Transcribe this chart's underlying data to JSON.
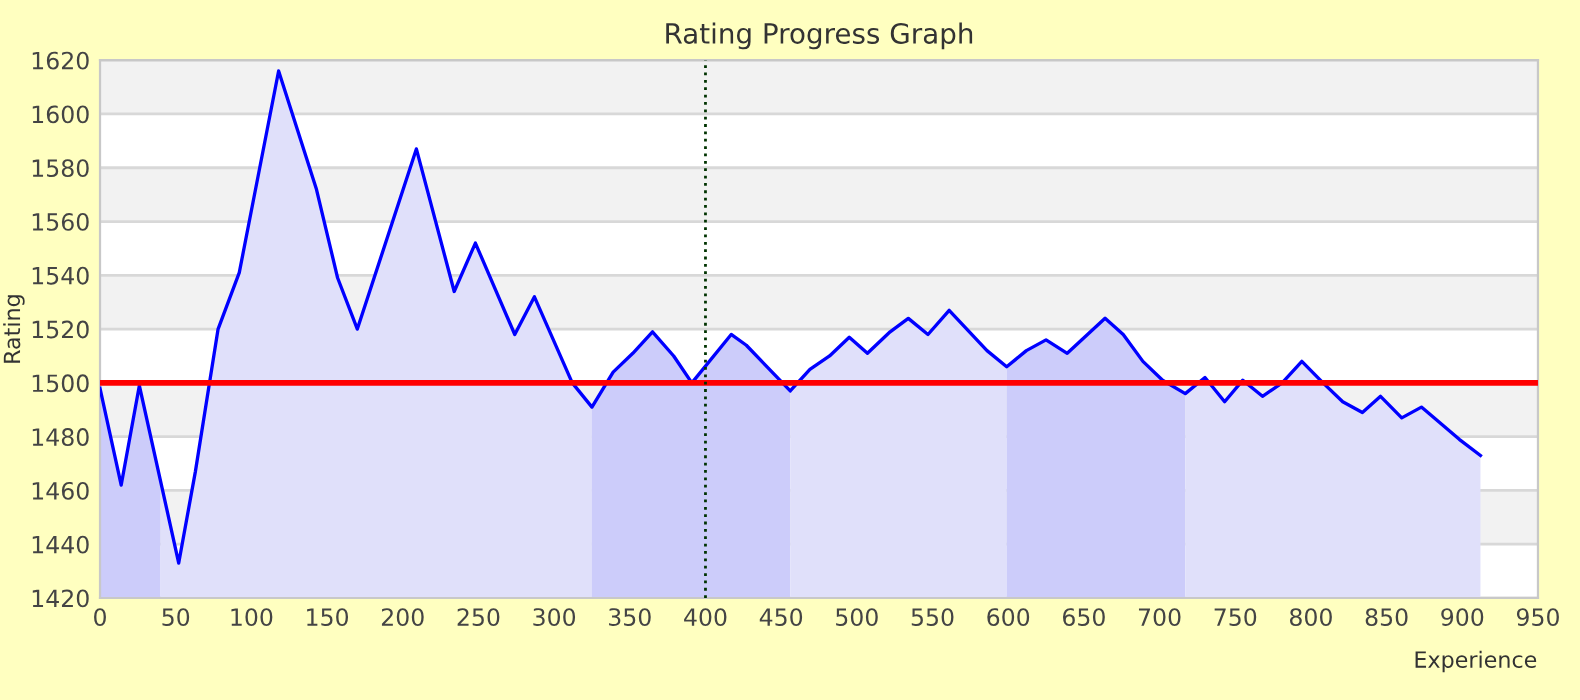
{
  "chart_data": {
    "type": "area",
    "title": "Rating Progress Graph",
    "xlabel": "Experience",
    "ylabel": "Rating",
    "series": [
      {
        "color": "#ccccfa",
        "x": [
          0,
          14,
          26,
          40
        ],
        "values": [
          1498,
          1462,
          1499,
          1463
        ]
      },
      {
        "color": "#e0e0fa",
        "x": [
          40,
          52,
          63,
          78,
          92,
          118,
          143,
          157,
          170,
          209,
          234,
          248,
          274,
          287,
          312,
          325
        ],
        "values": [
          1463,
          1433,
          1467,
          1520,
          1541,
          1616,
          1572,
          1539,
          1520,
          1587,
          1534,
          1552,
          1518,
          1532,
          1500,
          1491
        ]
      },
      {
        "color": "#ccccfa",
        "x": [
          325,
          339,
          352,
          365,
          379,
          391,
          417,
          427,
          456
        ],
        "values": [
          1491,
          1504,
          1511,
          1519,
          1510,
          1500,
          1518,
          1514,
          1497
        ]
      },
      {
        "color": "#e0e0fa",
        "x": [
          456,
          469,
          482,
          495,
          507,
          522,
          534,
          547,
          561,
          586,
          599
        ],
        "values": [
          1497,
          1505,
          1510,
          1517,
          1511,
          1519,
          1524,
          1518,
          1527,
          1512,
          1506
        ]
      },
      {
        "color": "#ccccfa",
        "x": [
          599,
          612,
          625,
          639,
          664,
          676,
          689,
          702,
          717
        ],
        "values": [
          1506,
          1512,
          1516,
          1511,
          1524,
          1518,
          1508,
          1501,
          1496
        ]
      },
      {
        "color": "#e0e0fa",
        "x": [
          717,
          730,
          743,
          755,
          768,
          781,
          794,
          808,
          821,
          834,
          846,
          860,
          873,
          898,
          912
        ],
        "values": [
          1496,
          1502,
          1493,
          1501,
          1495,
          1500,
          1508,
          1500,
          1493,
          1489,
          1495,
          1487,
          1491,
          1479,
          1473
        ]
      },
      {
        "type": "line",
        "color": "#0000ff",
        "x": [
          0,
          14,
          26,
          52,
          63,
          78,
          92,
          118,
          143,
          157,
          170,
          209,
          234,
          248,
          274,
          287,
          312,
          325,
          339,
          352,
          365,
          379,
          391,
          417,
          427,
          456,
          469,
          482,
          495,
          507,
          522,
          534,
          547,
          561,
          586,
          599,
          612,
          625,
          639,
          664,
          676,
          689,
          702,
          717,
          730,
          743,
          755,
          768,
          781,
          794,
          808,
          821,
          834,
          846,
          860,
          873,
          898,
          912
        ],
        "values": [
          1498,
          1462,
          1499,
          1433,
          1467,
          1520,
          1541,
          1616,
          1572,
          1539,
          1520,
          1587,
          1534,
          1552,
          1518,
          1532,
          1500,
          1491,
          1504,
          1511,
          1519,
          1510,
          1500,
          1518,
          1514,
          1497,
          1505,
          1510,
          1517,
          1511,
          1519,
          1524,
          1518,
          1527,
          1512,
          1506,
          1512,
          1516,
          1511,
          1524,
          1518,
          1508,
          1501,
          1496,
          1502,
          1493,
          1501,
          1495,
          1500,
          1508,
          1500,
          1493,
          1489,
          1495,
          1487,
          1491,
          1479,
          1473
        ]
      }
    ],
    "ref_lines": [
      {
        "axis": "y",
        "value": 1500,
        "color": "#ff0000",
        "line_style": "solid"
      },
      {
        "axis": "x",
        "value": 400,
        "color": "#003300",
        "line_style": "dotted"
      }
    ],
    "xlim": [
      0,
      950
    ],
    "xticks": [
      0,
      50,
      100,
      150,
      200,
      250,
      300,
      350,
      400,
      450,
      500,
      550,
      600,
      650,
      700,
      750,
      800,
      850,
      900,
      950
    ],
    "ylim": [
      1420,
      1620
    ],
    "yticks": [
      1420,
      1440,
      1460,
      1480,
      1500,
      1520,
      1540,
      1560,
      1580,
      1600,
      1620
    ],
    "grid": "y",
    "legend": false
  }
}
